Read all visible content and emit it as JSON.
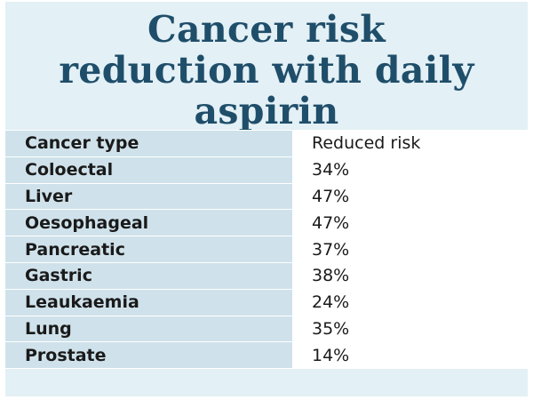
{
  "title": "Cancer risk reduction with daily aspirin",
  "colors": {
    "panel_background": "#e3f0f5",
    "header_cell_background": "#cfe2eb",
    "title_color": "#1f4e6a"
  },
  "chart_data": {
    "type": "table",
    "title": "Cancer risk reduction with daily aspirin",
    "columns": [
      "Cancer type",
      "Reduced risk"
    ],
    "rows": [
      {
        "type": "Coloectal",
        "risk": "34%"
      },
      {
        "type": "Liver",
        "risk": "47%"
      },
      {
        "type": "Oesophageal",
        "risk": "47%"
      },
      {
        "type": "Pancreatic",
        "risk": "37%"
      },
      {
        "type": "Gastric",
        "risk": "38%"
      },
      {
        "type": "Leaukaemia",
        "risk": "24%"
      },
      {
        "type": "Lung",
        "risk": "35%"
      },
      {
        "type": "Prostate",
        "risk": "14%"
      }
    ]
  }
}
